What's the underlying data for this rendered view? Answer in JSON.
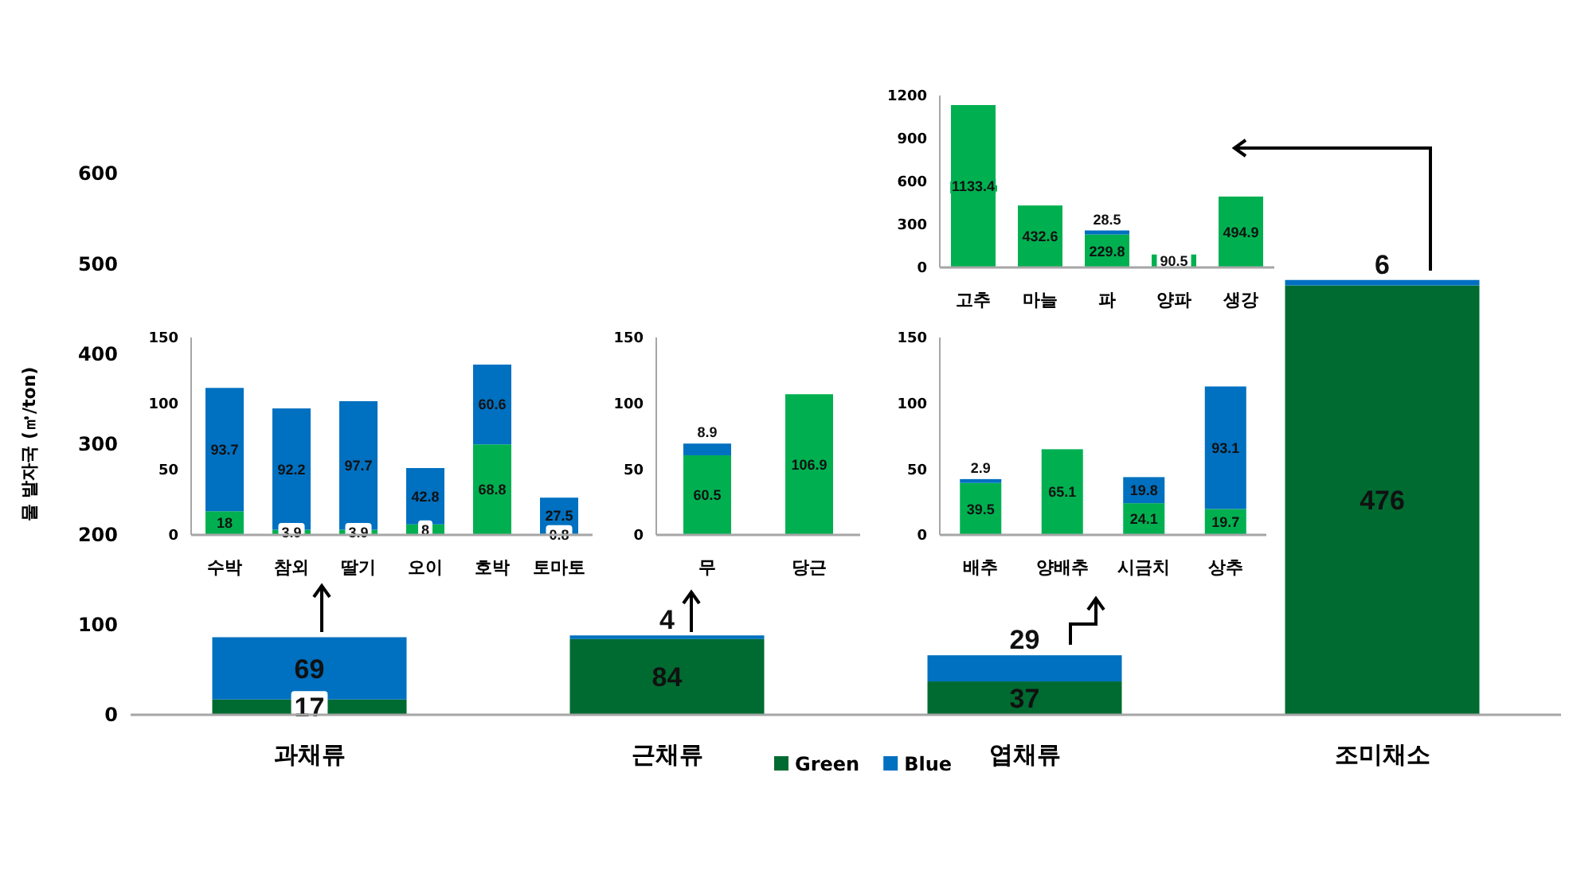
{
  "chart_data": [
    {
      "type": "bar",
      "stacked": true,
      "ylabel": "물 발자국 (㎥/ton)",
      "categories": [
        "과채류",
        "근채류",
        "엽채류",
        "조미채소"
      ],
      "ylim": [
        0,
        600
      ],
      "yticks": [
        0,
        100,
        200,
        300,
        400,
        500,
        600
      ],
      "grid": false,
      "legend": "bottom",
      "data_labels": true,
      "series": [
        {
          "name": "Green",
          "color": "#006b31",
          "values": [
            17,
            84,
            37,
            476
          ]
        },
        {
          "name": "Blue",
          "color": "#0070c0",
          "values": [
            69,
            4,
            29,
            6
          ]
        }
      ]
    },
    {
      "type": "bar",
      "stacked": true,
      "categories": [
        "수박",
        "참외",
        "딸기",
        "오이",
        "호박",
        "토마토"
      ],
      "ylim": [
        0,
        150
      ],
      "yticks": [
        0,
        50,
        100,
        150
      ],
      "data_labels": true,
      "series": [
        {
          "color": "#00b050",
          "values": [
            18,
            3.9,
            3.9,
            8,
            68.8,
            0.8
          ]
        },
        {
          "color": "#0070c0",
          "values": [
            93.7,
            92.2,
            97.7,
            42.8,
            60.6,
            27.5
          ]
        }
      ]
    },
    {
      "type": "bar",
      "stacked": true,
      "categories": [
        "무",
        "당근"
      ],
      "ylim": [
        0,
        150
      ],
      "yticks": [
        0,
        50,
        100,
        150
      ],
      "data_labels": true,
      "series": [
        {
          "color": "#00b050",
          "values": [
            60.5,
            106.9
          ]
        },
        {
          "color": "#0070c0",
          "values": [
            8.9,
            null
          ]
        }
      ]
    },
    {
      "type": "bar",
      "stacked": true,
      "categories": [
        "배추",
        "양배추",
        "시금치",
        "상추"
      ],
      "ylim": [
        0,
        150
      ],
      "yticks": [
        0,
        50,
        100,
        150
      ],
      "data_labels": true,
      "series": [
        {
          "color": "#00b050",
          "values": [
            39.5,
            65.1,
            24.1,
            19.7
          ]
        },
        {
          "color": "#0070c0",
          "values": [
            2.9,
            null,
            19.8,
            93.1
          ]
        }
      ]
    },
    {
      "type": "bar",
      "stacked": true,
      "categories": [
        "고추",
        "마늘",
        "파",
        "양파",
        "생강"
      ],
      "ylim": [
        0,
        1200
      ],
      "yticks": [
        0,
        300,
        600,
        900,
        1200
      ],
      "data_labels": true,
      "series": [
        {
          "color": "#00b050",
          "values": [
            1133.4,
            432.6,
            229.8,
            90.5,
            494.9
          ]
        },
        {
          "color": "#0070c0",
          "values": [
            null,
            null,
            28.5,
            null,
            null
          ]
        }
      ]
    }
  ]
}
